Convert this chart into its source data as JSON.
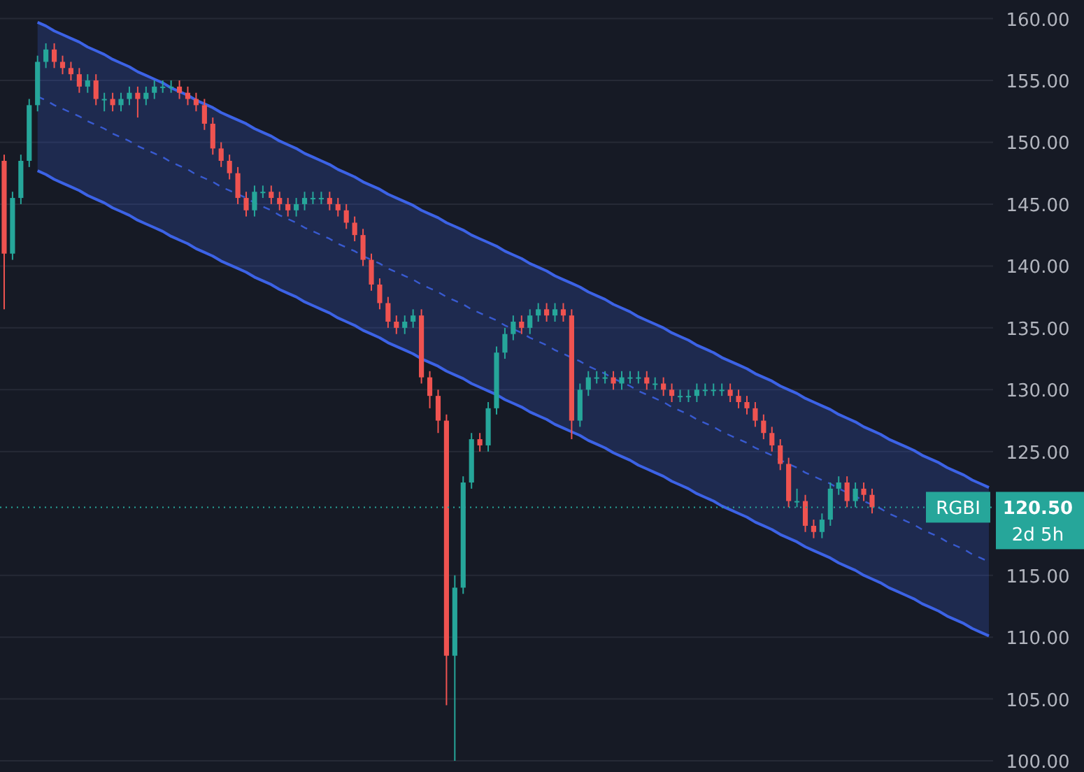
{
  "chart_data": {
    "type": "candlestick",
    "categories": [
      null,
      null,
      null,
      null,
      null,
      null,
      null,
      null,
      null,
      null,
      null,
      null,
      null,
      null,
      null,
      null,
      null,
      null,
      null,
      null,
      null,
      null,
      null,
      null,
      null,
      null,
      null,
      null,
      null,
      null,
      null,
      null,
      null,
      null,
      null,
      null,
      null,
      null,
      null,
      null,
      null,
      null,
      null,
      null,
      null,
      null,
      null,
      null,
      null,
      null,
      null,
      null,
      null,
      null,
      null,
      null,
      null,
      null,
      null,
      null,
      null,
      null,
      null,
      null,
      null,
      null,
      null,
      null,
      null,
      null,
      null,
      null,
      null,
      null,
      null,
      null,
      null,
      null,
      null,
      null,
      null,
      null,
      null,
      null,
      null,
      null,
      null,
      null,
      null,
      null,
      null,
      null,
      null,
      null,
      null,
      null,
      null,
      null,
      null,
      null,
      null,
      null,
      null,
      null,
      null,
      null,
      null,
      null,
      null,
      null,
      null,
      null,
      null,
      null,
      null,
      null,
      null,
      null,
      null
    ],
    "series": [
      {
        "type": "candlestick",
        "ohlc": [
          [
            148.5,
            149,
            136.5,
            141
          ],
          [
            141,
            146,
            140.5,
            145.5
          ],
          [
            145.5,
            149,
            145,
            148.5
          ],
          [
            148.5,
            153.5,
            148,
            153
          ],
          [
            153,
            157,
            152.5,
            156.5
          ],
          [
            156.5,
            158,
            156,
            157.5
          ],
          [
            157.5,
            158,
            156,
            156.5
          ],
          [
            156.5,
            157,
            155.5,
            156
          ],
          [
            156,
            156.5,
            155,
            155.5
          ],
          [
            155.5,
            156,
            154,
            154.5
          ],
          [
            154.5,
            155.5,
            154,
            155
          ],
          [
            155,
            155.5,
            153,
            153.5
          ],
          [
            153.5,
            154,
            152.5,
            153.5
          ],
          [
            153.5,
            154,
            152.5,
            153
          ],
          [
            153,
            154,
            152.5,
            153.5
          ],
          [
            153.5,
            154.5,
            153,
            154
          ],
          [
            154,
            154.5,
            152,
            153.5
          ],
          [
            153.5,
            154.5,
            153,
            154
          ],
          [
            154,
            155,
            153.5,
            154.5
          ],
          [
            154.5,
            155,
            154,
            154.5
          ],
          [
            154.5,
            155,
            154,
            154.5
          ],
          [
            154.5,
            155,
            153.5,
            154
          ],
          [
            154,
            154.5,
            153,
            153.5
          ],
          [
            153.5,
            154,
            152.5,
            153
          ],
          [
            153,
            153.5,
            151,
            151.5
          ],
          [
            151.5,
            152,
            149,
            149.5
          ],
          [
            149.5,
            150,
            148,
            148.5
          ],
          [
            148.5,
            149,
            147,
            147.5
          ],
          [
            147.5,
            148,
            145,
            145.5
          ],
          [
            145.5,
            146,
            144,
            144.5
          ],
          [
            144.5,
            146.5,
            144,
            146
          ],
          [
            146,
            146.5,
            145.5,
            146
          ],
          [
            146,
            146.5,
            145,
            145.5
          ],
          [
            145.5,
            146,
            144.5,
            145
          ],
          [
            145,
            145.5,
            144,
            144.5
          ],
          [
            144.5,
            145.5,
            144,
            145
          ],
          [
            145,
            146,
            144.5,
            145.5
          ],
          [
            145.5,
            146,
            145,
            145.5
          ],
          [
            145.5,
            146,
            145,
            145.5
          ],
          [
            145.5,
            146,
            144.5,
            145
          ],
          [
            145,
            145.5,
            144,
            144.5
          ],
          [
            144.5,
            145,
            143,
            143.5
          ],
          [
            143.5,
            144,
            142,
            142.5
          ],
          [
            142.5,
            143,
            140,
            140.5
          ],
          [
            140.5,
            141,
            138,
            138.5
          ],
          [
            138.5,
            139,
            136.5,
            137
          ],
          [
            137,
            137.5,
            135,
            135.5
          ],
          [
            135.5,
            136,
            134.5,
            135
          ],
          [
            135,
            136,
            134.5,
            135.5
          ],
          [
            135.5,
            136.5,
            135,
            136
          ],
          [
            136,
            136.5,
            130.5,
            131
          ],
          [
            131,
            131.5,
            128.5,
            129.5
          ],
          [
            129.5,
            130,
            126.5,
            127.5
          ],
          [
            127.5,
            128,
            104.5,
            108.5
          ],
          [
            108.5,
            115,
            100,
            114
          ],
          [
            114,
            123,
            113.5,
            122.5
          ],
          [
            122.5,
            126.5,
            122,
            126
          ],
          [
            126,
            126.5,
            125,
            125.5
          ],
          [
            125.5,
            129,
            125,
            128.5
          ],
          [
            128.5,
            133.5,
            128,
            133
          ],
          [
            133,
            135,
            132.5,
            134.5
          ],
          [
            134.5,
            136,
            134,
            135.5
          ],
          [
            135.5,
            136,
            134.5,
            135
          ],
          [
            135,
            136.5,
            134.5,
            136
          ],
          [
            136,
            137,
            135.5,
            136.5
          ],
          [
            136.5,
            137,
            135.5,
            136
          ],
          [
            136,
            137,
            135.5,
            136.5
          ],
          [
            136.5,
            137,
            135.5,
            136
          ],
          [
            136,
            136.5,
            126,
            127.5
          ],
          [
            127.5,
            130.5,
            127,
            130
          ],
          [
            130,
            131.5,
            129.5,
            131
          ],
          [
            131,
            131.5,
            130.5,
            131
          ],
          [
            131,
            131.5,
            130.5,
            131
          ],
          [
            131,
            131.5,
            130,
            130.5
          ],
          [
            130.5,
            131.5,
            130,
            131
          ],
          [
            131,
            131.5,
            130.5,
            131
          ],
          [
            131,
            131.5,
            130.5,
            131
          ],
          [
            131,
            131.5,
            130,
            130.5
          ],
          [
            130.5,
            131,
            130,
            130.5
          ],
          [
            130.5,
            131,
            129.5,
            130
          ],
          [
            130,
            130.5,
            129,
            129.5
          ],
          [
            129.5,
            130,
            129,
            129.5
          ],
          [
            129.5,
            130,
            129,
            129.5
          ],
          [
            129.5,
            130.5,
            129,
            130
          ],
          [
            130,
            130.5,
            129.5,
            130
          ],
          [
            130,
            130.5,
            129.5,
            130
          ],
          [
            130,
            130.5,
            129.5,
            130
          ],
          [
            130,
            130.5,
            129,
            129.5
          ],
          [
            129.5,
            130,
            128.5,
            129
          ],
          [
            129,
            129.5,
            128,
            128.5
          ],
          [
            128.5,
            129,
            127,
            127.5
          ],
          [
            127.5,
            128,
            126,
            126.5
          ],
          [
            126.5,
            127,
            125,
            125.5
          ],
          [
            125.5,
            126,
            123.5,
            124
          ],
          [
            124,
            124.5,
            120.5,
            121
          ],
          [
            121,
            122,
            120.5,
            121
          ],
          [
            121,
            121.5,
            118.5,
            119
          ],
          [
            119,
            119.5,
            118,
            118.5
          ],
          [
            118.5,
            120,
            118,
            119.5
          ],
          [
            119.5,
            122.5,
            119,
            122
          ],
          [
            122,
            123,
            121.5,
            122.5
          ],
          [
            122.5,
            123,
            120.5,
            121
          ],
          [
            121,
            122.5,
            120.5,
            122
          ],
          [
            122,
            122.5,
            121,
            121.5
          ],
          [
            121.5,
            122,
            120,
            120.5
          ],
          null,
          null,
          null,
          null,
          null,
          null,
          null,
          null,
          null,
          null,
          null,
          null,
          null,
          null
        ],
        "colors": [
          "#ef5350",
          "#26a69a",
          "#26a69a",
          "#26a69a",
          "#26a69a",
          "#26a69a",
          "#ef5350",
          "#ef5350",
          "#ef5350",
          "#ef5350",
          "#26a69a",
          "#ef5350",
          "#26a69a",
          "#ef5350",
          "#26a69a",
          "#26a69a",
          "#ef5350",
          "#26a69a",
          "#26a69a",
          "#26a69a",
          "#26a69a",
          "#ef5350",
          "#ef5350",
          "#ef5350",
          "#ef5350",
          "#ef5350",
          "#ef5350",
          "#ef5350",
          "#ef5350",
          "#ef5350",
          "#26a69a",
          "#26a69a",
          "#ef5350",
          "#ef5350",
          "#ef5350",
          "#26a69a",
          "#26a69a",
          "#26a69a",
          "#26a69a",
          "#ef5350",
          "#ef5350",
          "#ef5350",
          "#ef5350",
          "#ef5350",
          "#ef5350",
          "#ef5350",
          "#ef5350",
          "#ef5350",
          "#26a69a",
          "#26a69a",
          "#ef5350",
          "#ef5350",
          "#ef5350",
          "#ef5350",
          "#26a69a",
          "#26a69a",
          "#26a69a",
          "#ef5350",
          "#26a69a",
          "#26a69a",
          "#26a69a",
          "#26a69a",
          "#ef5350",
          "#26a69a",
          "#26a69a",
          "#ef5350",
          "#26a69a",
          "#ef5350",
          "#ef5350",
          "#26a69a",
          "#26a69a",
          "#26a69a",
          "#26a69a",
          "#ef5350",
          "#26a69a",
          "#26a69a",
          "#26a69a",
          "#ef5350",
          "#26a69a",
          "#ef5350",
          "#ef5350",
          "#26a69a",
          "#26a69a",
          "#26a69a",
          "#26a69a",
          "#26a69a",
          "#26a69a",
          "#ef5350",
          "#ef5350",
          "#ef5350",
          "#ef5350",
          "#ef5350",
          "#ef5350",
          "#ef5350",
          "#ef5350",
          "#26a69a",
          "#ef5350",
          "#ef5350",
          "#26a69a",
          "#26a69a",
          "#26a69a",
          "#ef5350",
          "#26a69a",
          "#ef5350",
          "#ef5350",
          null,
          null,
          null,
          null,
          null,
          null,
          null,
          null,
          null,
          null,
          null,
          null,
          null,
          null
        ]
      },
      {
        "type": "line",
        "color": "#3d63e6",
        "line_style": "solid",
        "values": [
          null,
          null,
          null,
          null,
          159.7,
          159.4,
          159.0,
          158.7,
          158.4,
          158.1,
          157.7,
          157.4,
          157.1,
          156.7,
          156.4,
          156.1,
          155.7,
          155.4,
          155.1,
          154.8,
          154.4,
          154.1,
          153.8,
          153.4,
          153.1,
          152.8,
          152.4,
          152.1,
          151.8,
          151.5,
          151.1,
          150.8,
          150.5,
          150.1,
          149.8,
          149.5,
          149.1,
          148.8,
          148.5,
          148.2,
          147.8,
          147.5,
          147.2,
          146.8,
          146.5,
          146.2,
          145.8,
          145.5,
          145.2,
          144.9,
          144.5,
          144.2,
          143.9,
          143.5,
          143.2,
          142.9,
          142.5,
          142.2,
          141.9,
          141.6,
          141.2,
          140.9,
          140.6,
          140.2,
          139.9,
          139.6,
          139.2,
          138.9,
          138.6,
          138.3,
          137.9,
          137.6,
          137.3,
          136.9,
          136.6,
          136.3,
          135.9,
          135.6,
          135.3,
          135.0,
          134.6,
          134.3,
          134.0,
          133.6,
          133.3,
          133.0,
          132.6,
          132.3,
          132.0,
          131.7,
          131.3,
          131.0,
          130.7,
          130.3,
          130.0,
          129.7,
          129.3,
          129.0,
          128.7,
          128.4,
          128.0,
          127.7,
          127.4,
          127.0,
          126.7,
          126.4,
          126.0,
          125.7,
          125.4,
          125.1,
          124.7,
          124.4,
          124.1,
          123.7,
          123.4,
          123.1,
          122.7,
          122.4,
          122.1
        ]
      },
      {
        "type": "line",
        "color": "#3d63e6",
        "line_style": "solid",
        "values": [
          null,
          null,
          null,
          null,
          147.7,
          147.4,
          147.0,
          146.7,
          146.4,
          146.1,
          145.7,
          145.4,
          145.1,
          144.7,
          144.4,
          144.1,
          143.7,
          143.4,
          143.1,
          142.8,
          142.4,
          142.1,
          141.8,
          141.4,
          141.1,
          140.8,
          140.4,
          140.1,
          139.8,
          139.5,
          139.1,
          138.8,
          138.5,
          138.1,
          137.8,
          137.5,
          137.1,
          136.8,
          136.5,
          136.2,
          135.8,
          135.5,
          135.2,
          134.8,
          134.5,
          134.2,
          133.8,
          133.5,
          133.2,
          132.9,
          132.5,
          132.2,
          131.9,
          131.5,
          131.2,
          130.9,
          130.5,
          130.2,
          129.9,
          129.6,
          129.2,
          128.9,
          128.6,
          128.2,
          127.9,
          127.6,
          127.2,
          126.9,
          126.6,
          126.3,
          125.9,
          125.6,
          125.3,
          124.9,
          124.6,
          124.3,
          123.9,
          123.6,
          123.3,
          123.0,
          122.6,
          122.3,
          122.0,
          121.6,
          121.3,
          121.0,
          120.6,
          120.3,
          120.0,
          119.7,
          119.3,
          119.0,
          118.7,
          118.3,
          118.0,
          117.7,
          117.3,
          117.0,
          116.7,
          116.4,
          116.0,
          115.7,
          115.4,
          115.0,
          114.7,
          114.4,
          114.0,
          113.7,
          113.4,
          113.1,
          112.7,
          112.4,
          112.1,
          111.7,
          111.4,
          111.1,
          110.7,
          110.4,
          110.1
        ]
      },
      {
        "type": "line",
        "color": "#3d63e6",
        "line_style": "dashed",
        "values": [
          null,
          null,
          null,
          null,
          153.7,
          153.4,
          153.0,
          152.7,
          152.4,
          152.1,
          151.7,
          151.4,
          151.1,
          150.7,
          150.4,
          150.1,
          149.7,
          149.4,
          149.1,
          148.8,
          148.4,
          148.1,
          147.8,
          147.4,
          147.1,
          146.8,
          146.4,
          146.1,
          145.8,
          145.5,
          145.1,
          144.8,
          144.5,
          144.1,
          143.8,
          143.5,
          143.1,
          142.8,
          142.5,
          142.2,
          141.8,
          141.5,
          141.2,
          140.8,
          140.5,
          140.2,
          139.8,
          139.5,
          139.2,
          138.9,
          138.5,
          138.2,
          137.9,
          137.5,
          137.2,
          136.9,
          136.5,
          136.2,
          135.9,
          135.6,
          135.2,
          134.9,
          134.6,
          134.2,
          133.9,
          133.6,
          133.2,
          132.9,
          132.6,
          132.3,
          131.9,
          131.6,
          131.3,
          130.9,
          130.6,
          130.3,
          129.9,
          129.6,
          129.3,
          129.0,
          128.6,
          128.3,
          128.0,
          127.6,
          127.3,
          127.0,
          126.6,
          126.3,
          126.0,
          125.7,
          125.3,
          125.0,
          124.7,
          124.3,
          124.0,
          123.7,
          123.3,
          123.0,
          122.7,
          122.4,
          122.0,
          121.7,
          121.4,
          121.0,
          120.7,
          120.4,
          120.0,
          119.7,
          119.4,
          119.1,
          118.7,
          118.4,
          118.1,
          117.7,
          117.4,
          117.1,
          116.7,
          116.4,
          116.1
        ],
        "upper": [
          null,
          null,
          null,
          null,
          159.7,
          159.4,
          159.0,
          158.7,
          158.4,
          158.1,
          157.7,
          157.4,
          157.1,
          156.7,
          156.4,
          156.1,
          155.7,
          155.4,
          155.1,
          154.8,
          154.4,
          154.1,
          153.8,
          153.4,
          153.1,
          152.8,
          152.4,
          152.1,
          151.8,
          151.5,
          151.1,
          150.8,
          150.5,
          150.1,
          149.8,
          149.5,
          149.1,
          148.8,
          148.5,
          148.2,
          147.8,
          147.5,
          147.2,
          146.8,
          146.5,
          146.2,
          145.8,
          145.5,
          145.2,
          144.9,
          144.5,
          144.2,
          143.9,
          143.5,
          143.2,
          142.9,
          142.5,
          142.2,
          141.9,
          141.6,
          141.2,
          140.9,
          140.6,
          140.2,
          139.9,
          139.6,
          139.2,
          138.9,
          138.6,
          138.3,
          137.9,
          137.6,
          137.3,
          136.9,
          136.6,
          136.3,
          135.9,
          135.6,
          135.3,
          135.0,
          134.6,
          134.3,
          134.0,
          133.6,
          133.3,
          133.0,
          132.6,
          132.3,
          132.0,
          131.7,
          131.3,
          131.0,
          130.7,
          130.3,
          130.0,
          129.7,
          129.3,
          129.0,
          128.7,
          128.4,
          128.0,
          127.7,
          127.4,
          127.0,
          126.7,
          126.4,
          126.0,
          125.7,
          125.4,
          125.1,
          124.7,
          124.4,
          124.1,
          123.7,
          123.4,
          123.1,
          122.7,
          122.4,
          122.1
        ],
        "lower": [
          null,
          null,
          null,
          null,
          147.7,
          147.4,
          147.0,
          146.7,
          146.4,
          146.1,
          145.7,
          145.4,
          145.1,
          144.7,
          144.4,
          144.1,
          143.7,
          143.4,
          143.1,
          142.8,
          142.4,
          142.1,
          141.8,
          141.4,
          141.1,
          140.8,
          140.4,
          140.1,
          139.8,
          139.5,
          139.1,
          138.8,
          138.5,
          138.1,
          137.8,
          137.5,
          137.1,
          136.8,
          136.5,
          136.2,
          135.8,
          135.5,
          135.2,
          134.8,
          134.5,
          134.2,
          133.8,
          133.5,
          133.2,
          132.9,
          132.5,
          132.2,
          131.9,
          131.5,
          131.2,
          130.9,
          130.5,
          130.2,
          129.9,
          129.6,
          129.2,
          128.9,
          128.6,
          128.2,
          127.9,
          127.6,
          127.2,
          126.9,
          126.6,
          126.3,
          125.9,
          125.6,
          125.3,
          124.9,
          124.6,
          124.3,
          123.9,
          123.6,
          123.3,
          123.0,
          122.6,
          122.3,
          122.0,
          121.6,
          121.3,
          121.0,
          120.6,
          120.3,
          120.0,
          119.7,
          119.3,
          119.0,
          118.7,
          118.3,
          118.0,
          117.7,
          117.3,
          117.0,
          116.7,
          116.4,
          116.0,
          115.7,
          115.4,
          115.0,
          114.7,
          114.4,
          114.0,
          113.7,
          113.4,
          113.1,
          112.7,
          112.4,
          112.1,
          111.7,
          111.4,
          111.1,
          110.7,
          110.4,
          110.1
        ]
      }
    ],
    "ylim": [
      99.1,
      161.5
    ],
    "yticks": [
      {
        "value": 100,
        "label": "100.00"
      },
      {
        "value": 105,
        "label": "105.00"
      },
      {
        "value": 110,
        "label": "110.00"
      },
      {
        "value": 115,
        "label": "115.00"
      },
      {
        "value": 125,
        "label": "125.00"
      },
      {
        "value": 130,
        "label": "130.00"
      },
      {
        "value": 135,
        "label": "135.00"
      },
      {
        "value": 140,
        "label": "140.00"
      },
      {
        "value": 145,
        "label": "145.00"
      },
      {
        "value": 150,
        "label": "150.00"
      },
      {
        "value": 155,
        "label": "155.00"
      },
      {
        "value": 160,
        "label": "160.00"
      }
    ],
    "grid": "y",
    "tick_labels": "y",
    "ref_lines": [
      {
        "axis": "y",
        "value": 120.5,
        "label": "RGBI",
        "color": "#26a69a",
        "line_style": "dotted"
      }
    ],
    "annotations": [
      "120.50",
      "2d 5h"
    ]
  }
}
